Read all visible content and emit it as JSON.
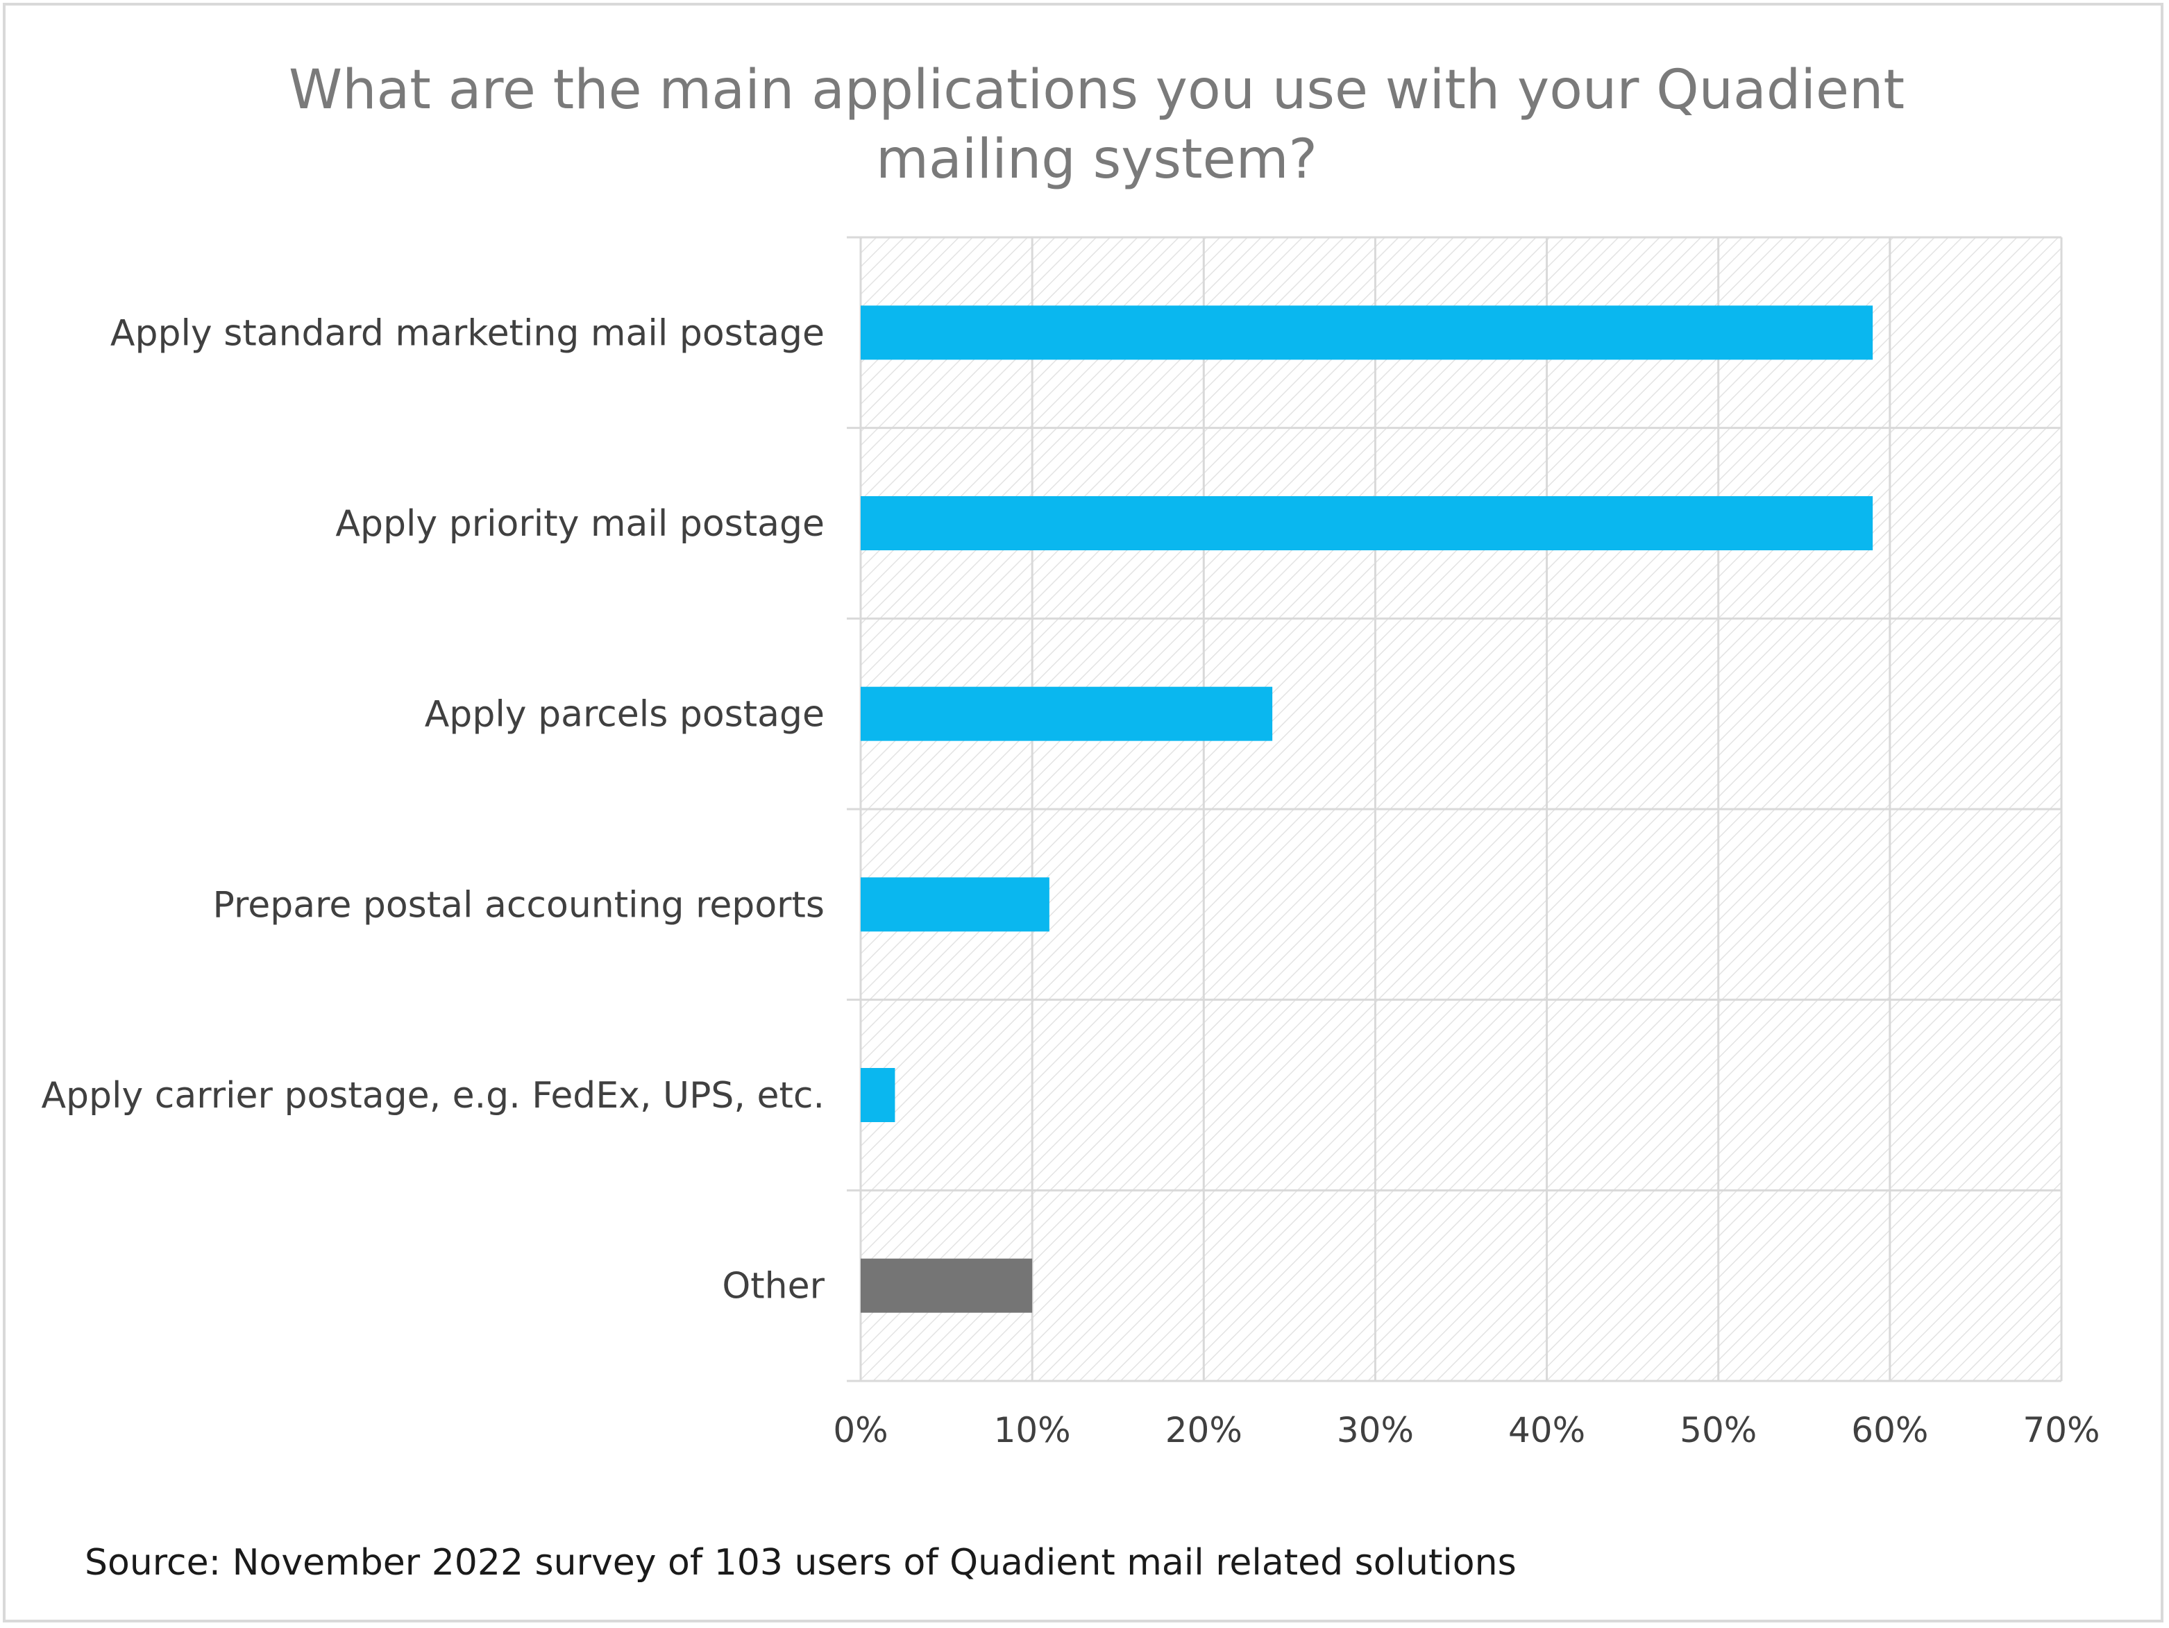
{
  "chart_data": {
    "type": "bar",
    "orientation": "horizontal",
    "title_lines": [
      "What are the main applications you use with your Quadient",
      "mailing system?"
    ],
    "categories": [
      "Apply standard marketing mail postage",
      "Apply priority mail postage",
      "Apply parcels postage",
      "Prepare postal accounting reports",
      "Apply carrier postage, e.g. FedEx, UPS, etc.",
      "Other"
    ],
    "values": [
      59,
      59,
      24,
      11,
      2,
      10
    ],
    "value_unit": "%",
    "xlim": [
      0,
      70
    ],
    "x_ticks": [
      "0%",
      "10%",
      "20%",
      "30%",
      "40%",
      "50%",
      "60%",
      "70%"
    ],
    "grid": true,
    "colors": {
      "primary": "#0ab7ef",
      "other": "#757575",
      "grid": "#d9d9d9",
      "hatch": "#e3e3e3"
    },
    "source": "Source: November 2022 survey of 103 users of Quadient mail related solutions"
  }
}
